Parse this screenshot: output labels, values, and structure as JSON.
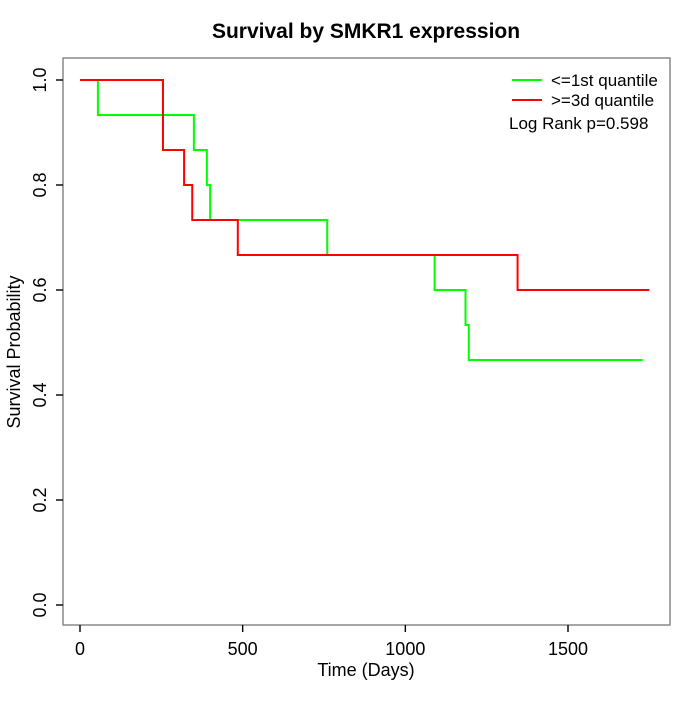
{
  "chart_data": {
    "type": "line",
    "subtype": "kaplan-meier-step",
    "title": "Survival by SMKR1 expression",
    "xlabel": "Time (Days)",
    "ylabel": "Survival Probability",
    "xlim": [
      0,
      1780
    ],
    "ylim": [
      0,
      1
    ],
    "x_ticks": [
      0,
      500,
      1000,
      1500
    ],
    "y_ticks": [
      "0.0",
      "0.2",
      "0.4",
      "0.6",
      "0.8",
      "1.0"
    ],
    "grid": false,
    "legend_position": "top-right",
    "annotation": "Log Rank p=0.598",
    "series": [
      {
        "name": "<=1st quantile",
        "color": "#00ff00",
        "points": [
          [
            0,
            1.0
          ],
          [
            55,
            0.9333
          ],
          [
            350,
            0.8667
          ],
          [
            390,
            0.8
          ],
          [
            400,
            0.7333
          ],
          [
            760,
            0.6667
          ],
          [
            1090,
            0.6
          ],
          [
            1185,
            0.5333
          ],
          [
            1195,
            0.4667
          ],
          [
            1730,
            0.4667
          ]
        ]
      },
      {
        "name": ">=3d quantile",
        "color": "#ff0000",
        "points": [
          [
            0,
            1.0
          ],
          [
            255,
            0.8667
          ],
          [
            320,
            0.8
          ],
          [
            345,
            0.7333
          ],
          [
            485,
            0.6667
          ],
          [
            1345,
            0.6
          ],
          [
            1750,
            0.6
          ]
        ]
      }
    ],
    "colors": {
      "group_low": "#00ff00",
      "group_high": "#ff0000",
      "box": "#808080",
      "tick": "#000000"
    }
  }
}
